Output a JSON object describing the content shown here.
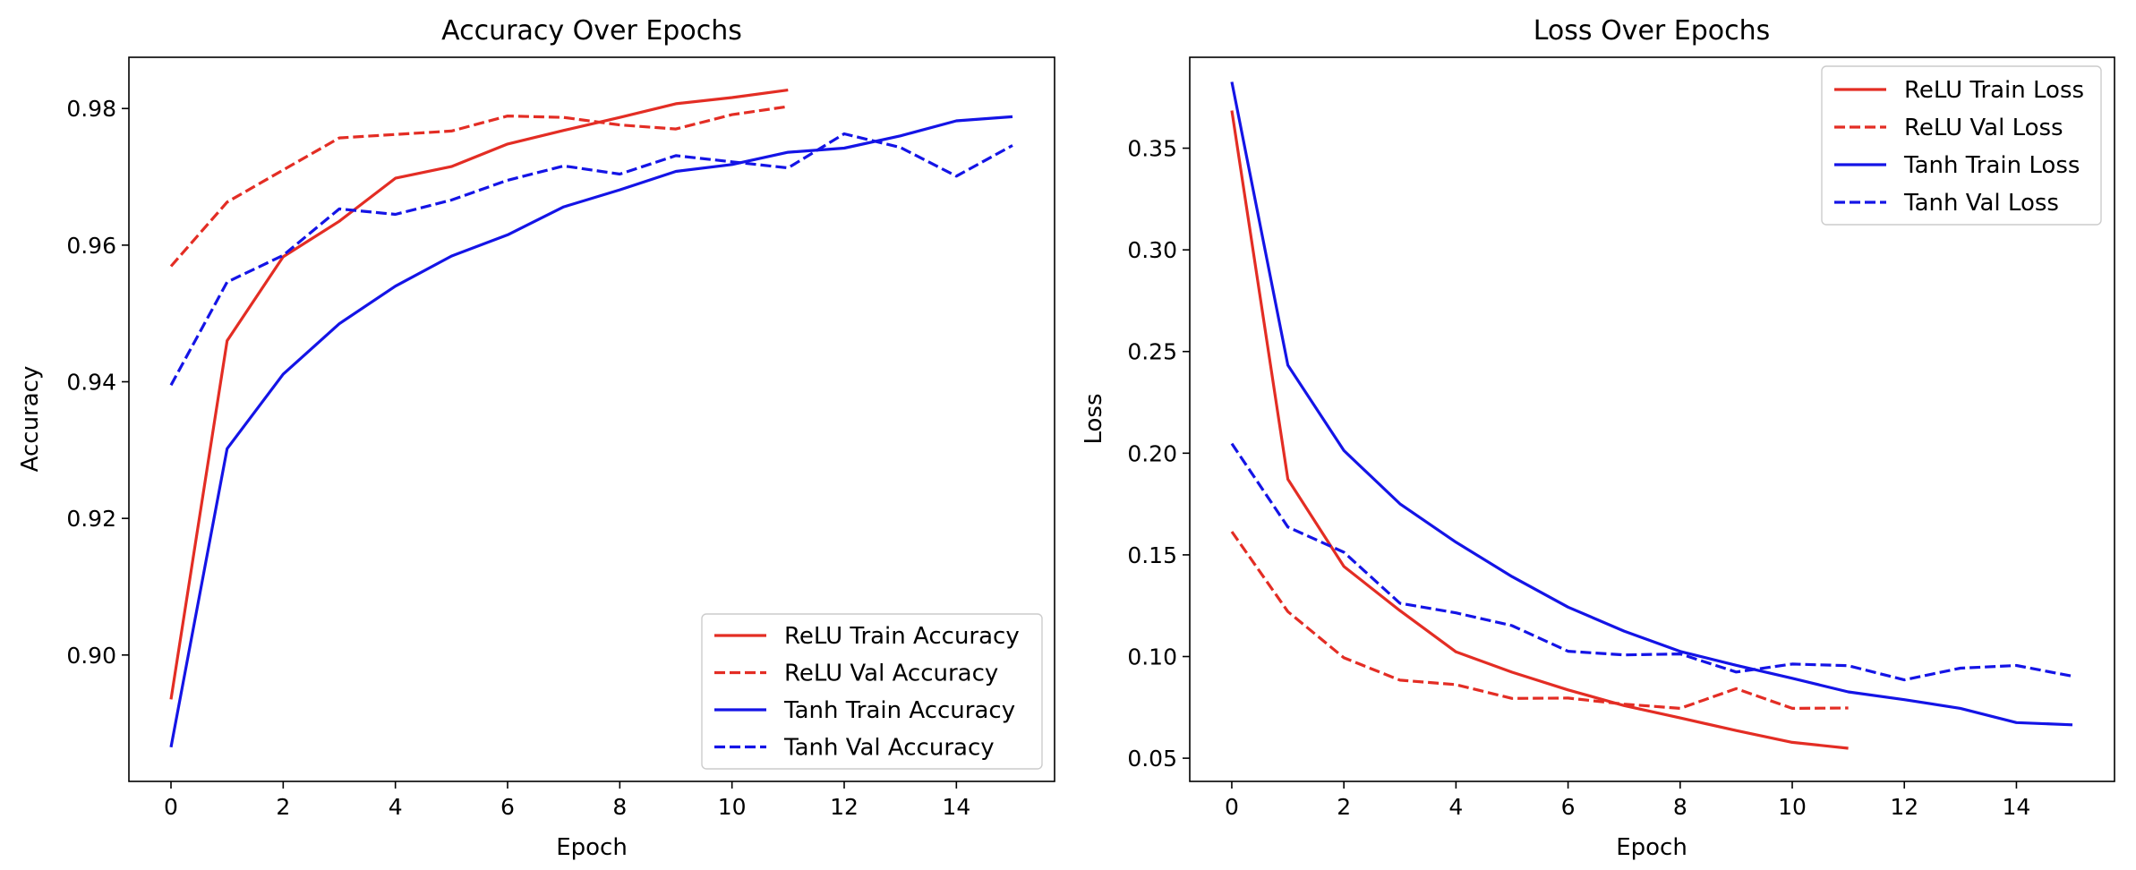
{
  "colors": {
    "relu": "#e32d24",
    "tanh": "#1414e6"
  },
  "chart_data": [
    {
      "type": "line",
      "title": "Accuracy Over Epochs",
      "xlabel": "Epoch",
      "ylabel": "Accuracy",
      "xlim": [
        -0.75,
        15.75
      ],
      "ylim": [
        0.8815,
        0.9875
      ],
      "xticks": [
        0,
        2,
        4,
        6,
        8,
        10,
        12,
        14
      ],
      "xtick_labels": [
        "0",
        "2",
        "4",
        "6",
        "8",
        "10",
        "12",
        "14"
      ],
      "yticks": [
        0.9,
        0.92,
        0.94,
        0.96,
        0.98
      ],
      "ytick_labels": [
        "0.90",
        "0.92",
        "0.94",
        "0.96",
        "0.98"
      ],
      "grid": false,
      "legend_position": "lower-right",
      "series": [
        {
          "name": "ReLU Train Accuracy",
          "color": "#e32d24",
          "style": "solid",
          "x": [
            0,
            1,
            2,
            3,
            4,
            5,
            6,
            7,
            8,
            9,
            10,
            11
          ],
          "y": [
            0.8935,
            0.946,
            0.9583,
            0.9635,
            0.9698,
            0.9715,
            0.9748,
            0.9768,
            0.9787,
            0.9807,
            0.9816,
            0.9827
          ]
        },
        {
          "name": "ReLU Val Accuracy",
          "color": "#e32d24",
          "style": "dashed",
          "x": [
            0,
            1,
            2,
            3,
            4,
            5,
            6,
            7,
            8,
            9,
            10,
            11
          ],
          "y": [
            0.9569,
            0.9663,
            0.971,
            0.9757,
            0.9762,
            0.9767,
            0.9789,
            0.9787,
            0.9776,
            0.977,
            0.9791,
            0.9803
          ]
        },
        {
          "name": "Tanh Train Accuracy",
          "color": "#1414e6",
          "style": "solid",
          "x": [
            0,
            1,
            2,
            3,
            4,
            5,
            6,
            7,
            8,
            9,
            10,
            11,
            12,
            13,
            14,
            15
          ],
          "y": [
            0.8865,
            0.9302,
            0.9411,
            0.9485,
            0.954,
            0.9584,
            0.9615,
            0.9656,
            0.9681,
            0.9708,
            0.9718,
            0.9736,
            0.9742,
            0.976,
            0.9782,
            0.9788
          ]
        },
        {
          "name": "Tanh Val Accuracy",
          "color": "#1414e6",
          "style": "dashed",
          "x": [
            0,
            1,
            2,
            3,
            4,
            5,
            6,
            7,
            8,
            9,
            10,
            11,
            12,
            13,
            14,
            15
          ],
          "y": [
            0.9395,
            0.9546,
            0.9585,
            0.9653,
            0.9645,
            0.9666,
            0.9695,
            0.9716,
            0.9704,
            0.9731,
            0.9722,
            0.9713,
            0.9763,
            0.9743,
            0.9701,
            0.9746
          ]
        }
      ]
    },
    {
      "type": "line",
      "title": "Loss Over Epochs",
      "xlabel": "Epoch",
      "ylabel": "Loss",
      "xlim": [
        -0.75,
        15.75
      ],
      "ylim": [
        0.0386,
        0.3947
      ],
      "xticks": [
        0,
        2,
        4,
        6,
        8,
        10,
        12,
        14
      ],
      "xtick_labels": [
        "0",
        "2",
        "4",
        "6",
        "8",
        "10",
        "12",
        "14"
      ],
      "yticks": [
        0.05,
        0.1,
        0.15,
        0.2,
        0.25,
        0.3,
        0.35
      ],
      "ytick_labels": [
        "0.05",
        "0.10",
        "0.15",
        "0.20",
        "0.25",
        "0.30",
        "0.35"
      ],
      "grid": false,
      "legend_position": "upper-right",
      "series": [
        {
          "name": "ReLU Train Loss",
          "color": "#e32d24",
          "style": "solid",
          "x": [
            0,
            1,
            2,
            3,
            4,
            5,
            6,
            7,
            8,
            9,
            10,
            11
          ],
          "y": [
            0.3685,
            0.1872,
            0.1443,
            0.1226,
            0.1023,
            0.0923,
            0.0836,
            0.0759,
            0.0698,
            0.0636,
            0.0578,
            0.0549
          ]
        },
        {
          "name": "ReLU Val Loss",
          "color": "#e32d24",
          "style": "dashed",
          "x": [
            0,
            1,
            2,
            3,
            4,
            5,
            6,
            7,
            8,
            9,
            10,
            11
          ],
          "y": [
            0.1614,
            0.1221,
            0.0994,
            0.0884,
            0.0862,
            0.0794,
            0.0796,
            0.0766,
            0.0745,
            0.0842,
            0.0745,
            0.0747
          ]
        },
        {
          "name": "Tanh Train Loss",
          "color": "#1414e6",
          "style": "solid",
          "x": [
            0,
            1,
            2,
            3,
            4,
            5,
            6,
            7,
            8,
            9,
            10,
            11,
            12,
            13,
            14,
            15
          ],
          "y": [
            0.3826,
            0.2433,
            0.2013,
            0.1751,
            0.1562,
            0.1393,
            0.1243,
            0.1125,
            0.1025,
            0.0957,
            0.0893,
            0.0826,
            0.0788,
            0.0745,
            0.0675,
            0.0664
          ]
        },
        {
          "name": "Tanh Val Loss",
          "color": "#1414e6",
          "style": "dashed",
          "x": [
            0,
            1,
            2,
            3,
            4,
            5,
            6,
            7,
            8,
            9,
            10,
            11,
            12,
            13,
            14,
            15
          ],
          "y": [
            0.2047,
            0.1637,
            0.1513,
            0.1262,
            0.1215,
            0.1152,
            0.1026,
            0.1008,
            0.1013,
            0.0924,
            0.0963,
            0.0955,
            0.0885,
            0.0943,
            0.0956,
            0.0903
          ]
        }
      ]
    }
  ]
}
